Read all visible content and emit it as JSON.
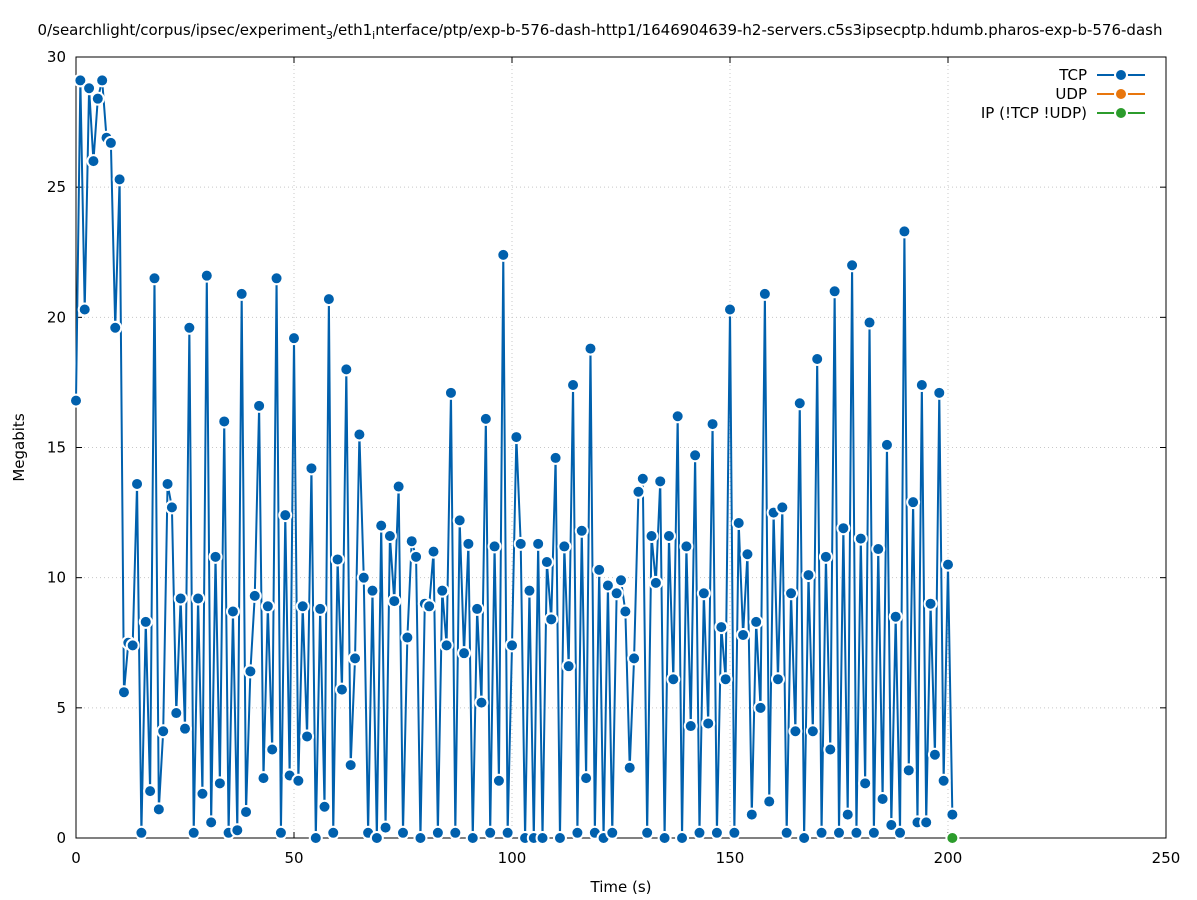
{
  "chart_data": {
    "type": "line",
    "title_main": "0/searchlight/corpus/ipsec/experiment",
    "title_sub1": "3",
    "title_mid": "/eth1",
    "title_sub2": "i",
    "title_end": "nterface/ptp/exp-b-576-dash-http1/1646904639-h2-servers.c5s3ipsecptp.hdumb.pharos-exp-b-576-dash",
    "xlabel": "Time (s)",
    "ylabel": "Megabits",
    "xlim": [
      0,
      250
    ],
    "ylim": [
      0,
      30
    ],
    "xticks": [
      "0",
      "50",
      "100",
      "150",
      "200",
      "250"
    ],
    "yticks": [
      "0",
      "5",
      "10",
      "15",
      "20",
      "25",
      "30"
    ],
    "grid": true,
    "legend_position": "top-right",
    "series": [
      {
        "name": "TCP",
        "color": "#0060ad",
        "points": [
          [
            0,
            16.8
          ],
          [
            1,
            29.1
          ],
          [
            2,
            20.3
          ],
          [
            3,
            28.8
          ],
          [
            4,
            26.0
          ],
          [
            5,
            28.4
          ],
          [
            6,
            29.1
          ],
          [
            7,
            26.9
          ],
          [
            8,
            26.7
          ],
          [
            9,
            19.6
          ],
          [
            10,
            25.3
          ],
          [
            11,
            5.6
          ],
          [
            12,
            7.5
          ],
          [
            13,
            7.4
          ],
          [
            14,
            13.6
          ],
          [
            15,
            0.2
          ],
          [
            16,
            8.3
          ],
          [
            17,
            1.8
          ],
          [
            18,
            21.5
          ],
          [
            19,
            1.1
          ],
          [
            20,
            4.1
          ],
          [
            21,
            13.6
          ],
          [
            22,
            12.7
          ],
          [
            23,
            4.8
          ],
          [
            24,
            9.2
          ],
          [
            25,
            4.2
          ],
          [
            26,
            19.6
          ],
          [
            27,
            0.2
          ],
          [
            28,
            9.2
          ],
          [
            29,
            1.7
          ],
          [
            30,
            21.6
          ],
          [
            31,
            0.6
          ],
          [
            32,
            10.8
          ],
          [
            33,
            2.1
          ],
          [
            34,
            16.0
          ],
          [
            35,
            0.2
          ],
          [
            36,
            8.7
          ],
          [
            37,
            0.3
          ],
          [
            38,
            20.9
          ],
          [
            39,
            1.0
          ],
          [
            40,
            6.4
          ],
          [
            41,
            9.3
          ],
          [
            42,
            16.6
          ],
          [
            43,
            2.3
          ],
          [
            44,
            8.9
          ],
          [
            45,
            3.4
          ],
          [
            46,
            21.5
          ],
          [
            47,
            0.2
          ],
          [
            48,
            12.4
          ],
          [
            49,
            2.4
          ],
          [
            50,
            19.2
          ],
          [
            51,
            2.2
          ],
          [
            52,
            8.9
          ],
          [
            53,
            3.9
          ],
          [
            54,
            14.2
          ],
          [
            55,
            0.0
          ],
          [
            56,
            8.8
          ],
          [
            57,
            1.2
          ],
          [
            58,
            20.7
          ],
          [
            59,
            0.2
          ],
          [
            60,
            10.7
          ],
          [
            61,
            5.7
          ],
          [
            62,
            18.0
          ],
          [
            63,
            2.8
          ],
          [
            64,
            6.9
          ],
          [
            65,
            15.5
          ],
          [
            66,
            10.0
          ],
          [
            67,
            0.2
          ],
          [
            68,
            9.5
          ],
          [
            69,
            0.0
          ],
          [
            70,
            12.0
          ],
          [
            71,
            0.4
          ],
          [
            72,
            11.6
          ],
          [
            73,
            9.1
          ],
          [
            74,
            13.5
          ],
          [
            75,
            0.2
          ],
          [
            76,
            7.7
          ],
          [
            77,
            11.4
          ],
          [
            78,
            10.8
          ],
          [
            79,
            0.0
          ],
          [
            80,
            9.0
          ],
          [
            81,
            8.9
          ],
          [
            82,
            11.0
          ],
          [
            83,
            0.2
          ],
          [
            84,
            9.5
          ],
          [
            85,
            7.4
          ],
          [
            86,
            17.1
          ],
          [
            87,
            0.2
          ],
          [
            88,
            12.2
          ],
          [
            89,
            7.1
          ],
          [
            90,
            11.3
          ],
          [
            91,
            0.0
          ],
          [
            92,
            8.8
          ],
          [
            93,
            5.2
          ],
          [
            94,
            16.1
          ],
          [
            95,
            0.2
          ],
          [
            96,
            11.2
          ],
          [
            97,
            2.2
          ],
          [
            98,
            22.4
          ],
          [
            99,
            0.2
          ],
          [
            100,
            7.4
          ],
          [
            101,
            15.4
          ],
          [
            102,
            11.3
          ],
          [
            103,
            0.0
          ],
          [
            104,
            9.5
          ],
          [
            105,
            0.0
          ],
          [
            106,
            11.3
          ],
          [
            107,
            0.0
          ],
          [
            108,
            10.6
          ],
          [
            109,
            8.4
          ],
          [
            110,
            14.6
          ],
          [
            111,
            0.0
          ],
          [
            112,
            11.2
          ],
          [
            113,
            6.6
          ],
          [
            114,
            17.4
          ],
          [
            115,
            0.2
          ],
          [
            116,
            11.8
          ],
          [
            117,
            2.3
          ],
          [
            118,
            18.8
          ],
          [
            119,
            0.2
          ],
          [
            120,
            10.3
          ],
          [
            121,
            0.0
          ],
          [
            122,
            9.7
          ],
          [
            123,
            0.2
          ],
          [
            124,
            9.4
          ],
          [
            125,
            9.9
          ],
          [
            126,
            8.7
          ],
          [
            127,
            2.7
          ],
          [
            128,
            6.9
          ],
          [
            129,
            13.3
          ],
          [
            130,
            13.8
          ],
          [
            131,
            0.2
          ],
          [
            132,
            11.6
          ],
          [
            133,
            9.8
          ],
          [
            134,
            13.7
          ],
          [
            135,
            0.0
          ],
          [
            136,
            11.6
          ],
          [
            137,
            6.1
          ],
          [
            138,
            16.2
          ],
          [
            139,
            0.0
          ],
          [
            140,
            11.2
          ],
          [
            141,
            4.3
          ],
          [
            142,
            14.7
          ],
          [
            143,
            0.2
          ],
          [
            144,
            9.4
          ],
          [
            145,
            4.4
          ],
          [
            146,
            15.9
          ],
          [
            147,
            0.2
          ],
          [
            148,
            8.1
          ],
          [
            149,
            6.1
          ],
          [
            150,
            20.3
          ],
          [
            151,
            0.2
          ],
          [
            152,
            12.1
          ],
          [
            153,
            7.8
          ],
          [
            154,
            10.9
          ],
          [
            155,
            0.9
          ],
          [
            156,
            8.3
          ],
          [
            157,
            5.0
          ],
          [
            158,
            20.9
          ],
          [
            159,
            1.4
          ],
          [
            160,
            12.5
          ],
          [
            161,
            6.1
          ],
          [
            162,
            12.7
          ],
          [
            163,
            0.2
          ],
          [
            164,
            9.4
          ],
          [
            165,
            4.1
          ],
          [
            166,
            16.7
          ],
          [
            167,
            0.0
          ],
          [
            168,
            10.1
          ],
          [
            169,
            4.1
          ],
          [
            170,
            18.4
          ],
          [
            171,
            0.2
          ],
          [
            172,
            10.8
          ],
          [
            173,
            3.4
          ],
          [
            174,
            21.0
          ],
          [
            175,
            0.2
          ],
          [
            176,
            11.9
          ],
          [
            177,
            0.9
          ],
          [
            178,
            22.0
          ],
          [
            179,
            0.2
          ],
          [
            180,
            11.5
          ],
          [
            181,
            2.1
          ],
          [
            182,
            19.8
          ],
          [
            183,
            0.2
          ],
          [
            184,
            11.1
          ],
          [
            185,
            1.5
          ],
          [
            186,
            15.1
          ],
          [
            187,
            0.5
          ],
          [
            188,
            8.5
          ],
          [
            189,
            0.2
          ],
          [
            190,
            23.3
          ],
          [
            191,
            2.6
          ],
          [
            192,
            12.9
          ],
          [
            193,
            0.6
          ],
          [
            194,
            17.4
          ],
          [
            195,
            0.6
          ],
          [
            196,
            9.0
          ],
          [
            197,
            3.2
          ],
          [
            198,
            17.1
          ],
          [
            199,
            2.2
          ],
          [
            200,
            10.5
          ],
          [
            201,
            0.9
          ]
        ]
      },
      {
        "name": "UDP",
        "color": "#e8760d",
        "points": []
      },
      {
        "name": "IP (!TCP  !UDP)",
        "color": "#2c9c2c",
        "points": [
          [
            201,
            0.0
          ]
        ]
      }
    ]
  }
}
